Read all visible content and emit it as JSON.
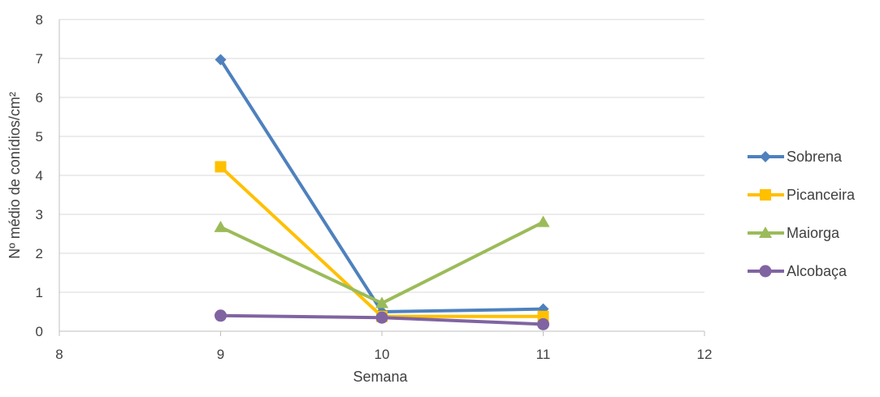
{
  "chart_data": {
    "type": "line",
    "xlabel": "Semana",
    "ylabel": "Nº médio de conídios/cm²",
    "xlim": [
      8,
      12
    ],
    "ylim": [
      0,
      8
    ],
    "x_ticks": [
      "8",
      "9",
      "10",
      "11",
      "12"
    ],
    "y_ticks": [
      "0",
      "1",
      "2",
      "3",
      "4",
      "5",
      "6",
      "7",
      "8"
    ],
    "grid": "horizontal",
    "legend_position": "right",
    "series": [
      {
        "name": "Sobrena",
        "marker": "diamond",
        "color": "#4E81BD",
        "x": [
          9,
          10,
          11
        ],
        "values": [
          6.97,
          0.5,
          0.57
        ]
      },
      {
        "name": "Picanceira",
        "marker": "square",
        "color": "#FFC000",
        "x": [
          9,
          10,
          11
        ],
        "values": [
          4.22,
          0.38,
          0.38
        ]
      },
      {
        "name": "Maiorga",
        "marker": "triangle",
        "color": "#9BBB59",
        "x": [
          9,
          10,
          11
        ],
        "values": [
          2.67,
          0.72,
          2.8
        ]
      },
      {
        "name": "Alcobaça",
        "marker": "circle",
        "color": "#8064A2",
        "x": [
          9,
          10,
          11
        ],
        "values": [
          0.4,
          0.35,
          0.18
        ]
      }
    ]
  }
}
